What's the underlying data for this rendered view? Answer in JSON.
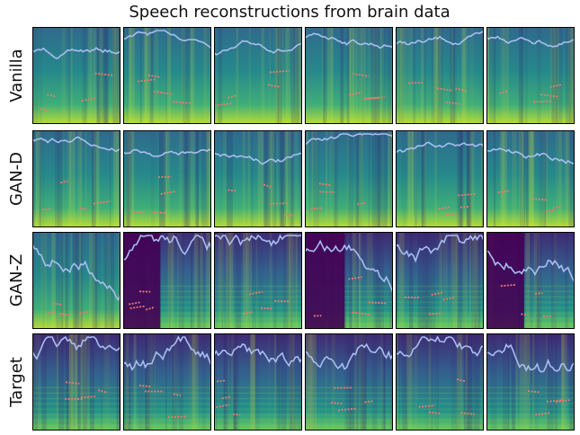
{
  "title": "Speech reconstructions from brain data",
  "rows": [
    "Vanilla",
    "GAN-D",
    "GAN-Z",
    "Target"
  ]
}
